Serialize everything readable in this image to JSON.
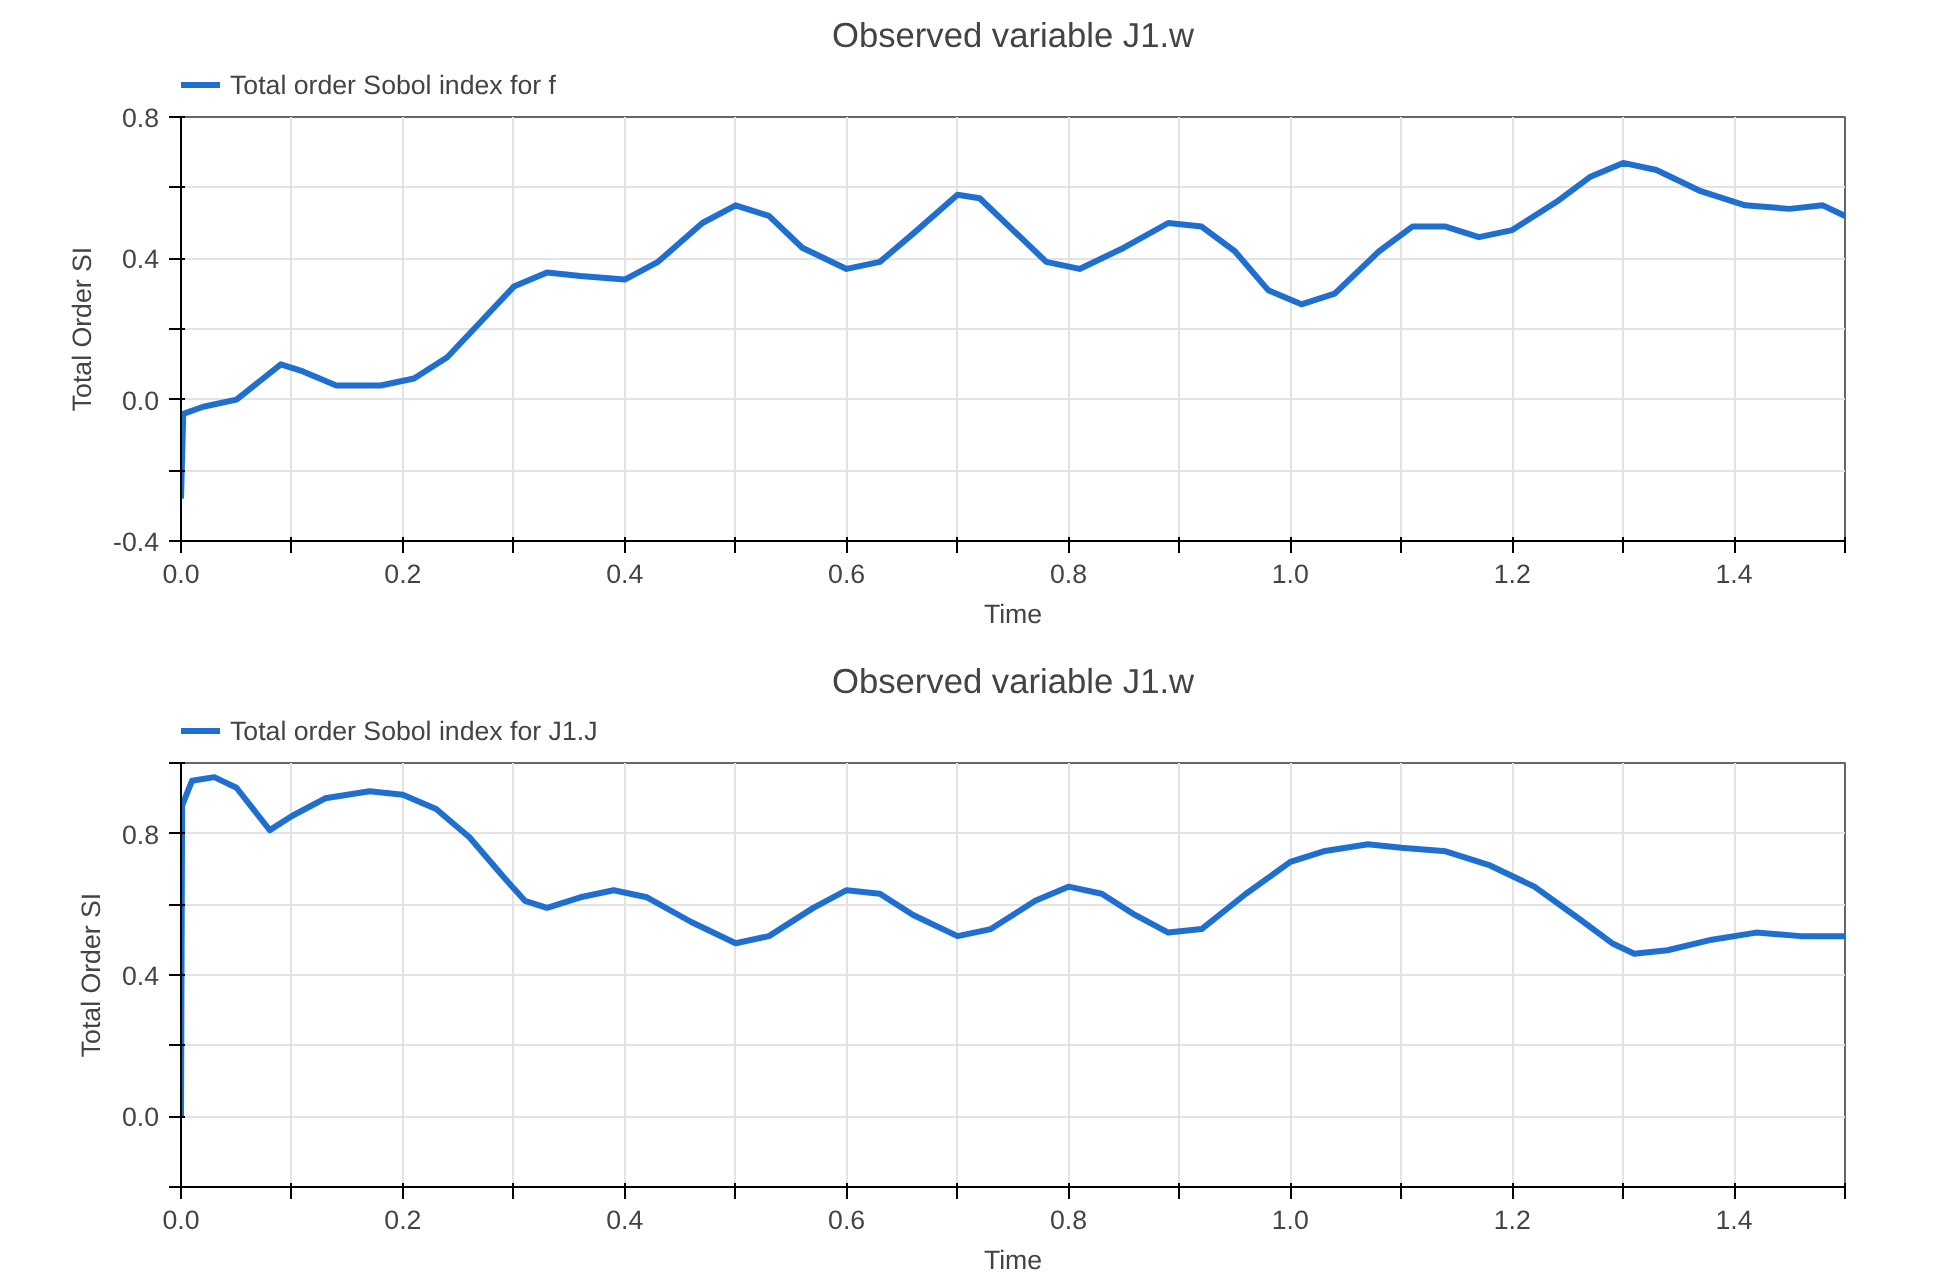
{
  "chart_data": [
    {
      "type": "line",
      "title": "Observed variable J1.w",
      "xlabel": "Time",
      "ylabel": "Total Order SI",
      "legend": "top left",
      "grid": true,
      "x": [
        0,
        0.002,
        0.02,
        0.05,
        0.07,
        0.09,
        0.11,
        0.14,
        0.18,
        0.21,
        0.24,
        0.27,
        0.3,
        0.33,
        0.36,
        0.4,
        0.43,
        0.47,
        0.5,
        0.53,
        0.56,
        0.6,
        0.63,
        0.66,
        0.7,
        0.72,
        0.75,
        0.78,
        0.81,
        0.85,
        0.89,
        0.92,
        0.95,
        0.98,
        1.01,
        1.04,
        1.08,
        1.11,
        1.14,
        1.17,
        1.2,
        1.24,
        1.27,
        1.3,
        1.33,
        1.37,
        1.41,
        1.45,
        1.48,
        1.5
      ],
      "series": [
        {
          "name": "Total order Sobol index for f",
          "color": "#1f6fd0",
          "values": [
            -0.28,
            -0.04,
            -0.02,
            0.0,
            0.05,
            0.1,
            0.08,
            0.04,
            0.04,
            0.06,
            0.12,
            0.22,
            0.32,
            0.36,
            0.35,
            0.34,
            0.39,
            0.5,
            0.55,
            0.52,
            0.43,
            0.37,
            0.39,
            0.47,
            0.58,
            0.57,
            0.48,
            0.39,
            0.37,
            0.43,
            0.5,
            0.49,
            0.42,
            0.31,
            0.27,
            0.3,
            0.42,
            0.49,
            0.49,
            0.46,
            0.48,
            0.56,
            0.63,
            0.67,
            0.65,
            0.59,
            0.55,
            0.54,
            0.55,
            0.52
          ]
        }
      ],
      "xlim": [
        0,
        1.5
      ],
      "ylim": [
        -0.4,
        0.8
      ],
      "xticks": [
        {
          "value": 0,
          "label": "0.0"
        },
        {
          "value": 0.1,
          "label": null
        },
        0.2,
        {
          "value": 0.3,
          "label": null
        },
        0.4,
        {
          "value": 0.5,
          "label": null
        },
        0.6,
        {
          "value": 0.7,
          "label": null
        },
        0.8,
        {
          "value": 0.9,
          "label": null
        },
        {
          "value": 1.0,
          "label": "1.0"
        },
        {
          "value": 1.1,
          "label": null
        },
        1.2,
        {
          "value": 1.3,
          "label": null
        },
        1.4,
        {
          "value": 1.5,
          "label": null
        }
      ],
      "yticks": [
        -0.4,
        {
          "value": -0.2,
          "label": null
        },
        {
          "value": 0,
          "label": "0.0"
        },
        {
          "value": 0.2,
          "label": null
        },
        0.4,
        {
          "value": 0.6,
          "label": null
        },
        0.8
      ]
    },
    {
      "type": "line",
      "title": "Observed variable J1.w",
      "xlabel": "Time",
      "ylabel": "Total Order SI",
      "legend": "top left",
      "grid": true,
      "x": [
        0,
        0.001,
        0.01,
        0.03,
        0.05,
        0.07,
        0.08,
        0.1,
        0.13,
        0.17,
        0.2,
        0.23,
        0.26,
        0.29,
        0.31,
        0.33,
        0.36,
        0.39,
        0.42,
        0.46,
        0.5,
        0.53,
        0.57,
        0.6,
        0.63,
        0.66,
        0.7,
        0.73,
        0.77,
        0.8,
        0.83,
        0.86,
        0.89,
        0.92,
        0.96,
        1.0,
        1.03,
        1.07,
        1.1,
        1.14,
        1.18,
        1.22,
        1.26,
        1.29,
        1.31,
        1.34,
        1.38,
        1.42,
        1.46,
        1.5
      ],
      "series": [
        {
          "name": "Total order Sobol index for J1.J",
          "color": "#1f6fd0",
          "values": [
            0.0,
            0.88,
            0.95,
            0.96,
            0.93,
            0.85,
            0.81,
            0.85,
            0.9,
            0.92,
            0.91,
            0.87,
            0.79,
            0.68,
            0.61,
            0.59,
            0.62,
            0.64,
            0.62,
            0.55,
            0.49,
            0.51,
            0.59,
            0.64,
            0.63,
            0.57,
            0.51,
            0.53,
            0.61,
            0.65,
            0.63,
            0.57,
            0.52,
            0.53,
            0.63,
            0.72,
            0.75,
            0.77,
            0.76,
            0.75,
            0.71,
            0.65,
            0.56,
            0.49,
            0.46,
            0.47,
            0.5,
            0.52,
            0.51,
            0.51
          ]
        }
      ],
      "xlim": [
        0,
        1.5
      ],
      "ylim": [
        -0.2,
        1.0
      ],
      "xticks": [
        {
          "value": 0,
          "label": "0.0"
        },
        {
          "value": 0.1,
          "label": null
        },
        0.2,
        {
          "value": 0.3,
          "label": null
        },
        0.4,
        {
          "value": 0.5,
          "label": null
        },
        0.6,
        {
          "value": 0.7,
          "label": null
        },
        0.8,
        {
          "value": 0.9,
          "label": null
        },
        {
          "value": 1.0,
          "label": "1.0"
        },
        {
          "value": 1.1,
          "label": null
        },
        1.2,
        {
          "value": 1.3,
          "label": null
        },
        1.4,
        {
          "value": 1.5,
          "label": null
        }
      ],
      "yticks": [
        {
          "value": -0.2,
          "label": null
        },
        {
          "value": 0,
          "label": "0.0"
        },
        {
          "value": 0.2,
          "label": null
        },
        0.4,
        {
          "value": 0.6,
          "label": null
        },
        0.8,
        {
          "value": 1.0,
          "label": null
        }
      ]
    }
  ]
}
